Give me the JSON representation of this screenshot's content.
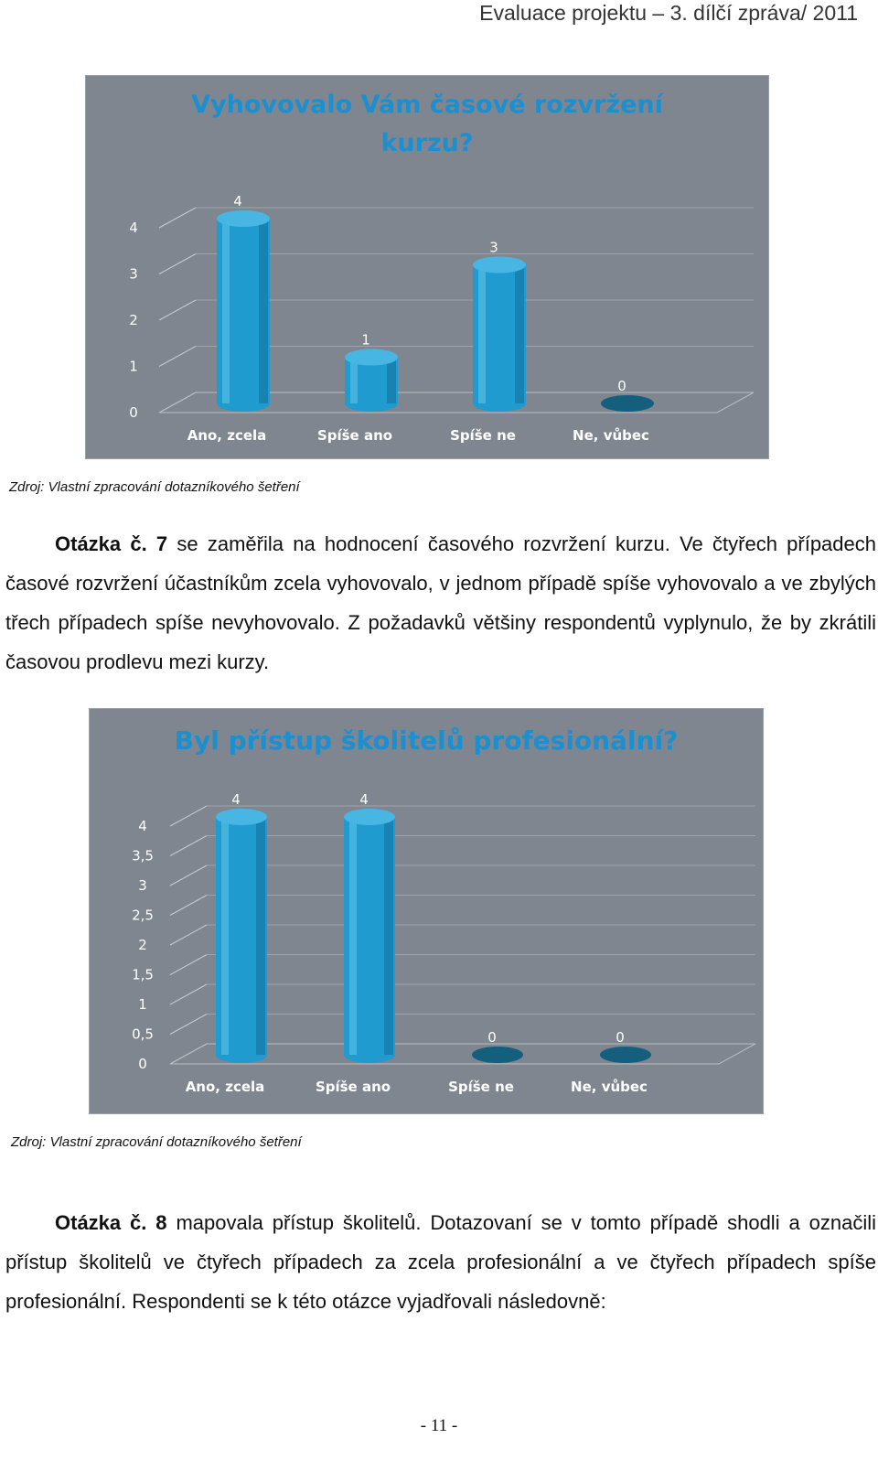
{
  "header": {
    "text": "Evaluace projektu – 3. dílčí zpráva/ 2011"
  },
  "chart_data": [
    {
      "type": "bar",
      "title_lines": [
        "Vyhovovalo Vám časové rozvržení",
        "kurzu?"
      ],
      "categories": [
        "Ano, zcela",
        "Spíše ano",
        "Spíše ne",
        "Ne, vůbec"
      ],
      "values": [
        4,
        1,
        3,
        0
      ],
      "yticks": [
        "0",
        "1",
        "2",
        "3",
        "4"
      ],
      "ylim": [
        0,
        4
      ],
      "grid": true,
      "bar_color": "#1f9bd0"
    },
    {
      "type": "bar",
      "title_lines": [
        "Byl přístup školitelů profesionální?"
      ],
      "categories": [
        "Ano, zcela",
        "Spíše ano",
        "Spíše ne",
        "Ne, vůbec"
      ],
      "values": [
        4,
        4,
        0,
        0
      ],
      "yticks": [
        "0",
        "0,5",
        "1",
        "1,5",
        "2",
        "2,5",
        "3",
        "3,5",
        "4"
      ],
      "ylim": [
        0,
        4
      ],
      "grid": true,
      "bar_color": "#1f9bd0"
    }
  ],
  "source1": "Zdroj: Vlastní zpracování dotazníkového šetření",
  "para1": {
    "lead": "Otázka č. 7",
    "rest": " se zaměřila na hodnocení časového rozvržení kurzu. Ve čtyřech případech časové rozvržení účastníkům zcela vyhovovalo, v jednom případě spíše vyhovovalo a ve zbylých třech případech spíše nevyhovovalo. Z požadavků většiny respondentů vyplynulo, že by zkrátili časovou prodlevu mezi kurzy."
  },
  "source2": "Zdroj: Vlastní zpracování dotazníkového šetření",
  "para2": {
    "lead": "Otázka č. 8",
    "rest": " mapovala přístup školitelů. Dotazovaní se v tomto případě shodli a označili přístup školitelů ve čtyřech případech za zcela profesionální a ve čtyřech případech spíše profesionální. Respondenti se k této otázce vyjadřovali následovně:"
  },
  "page_number": "- 11 -"
}
